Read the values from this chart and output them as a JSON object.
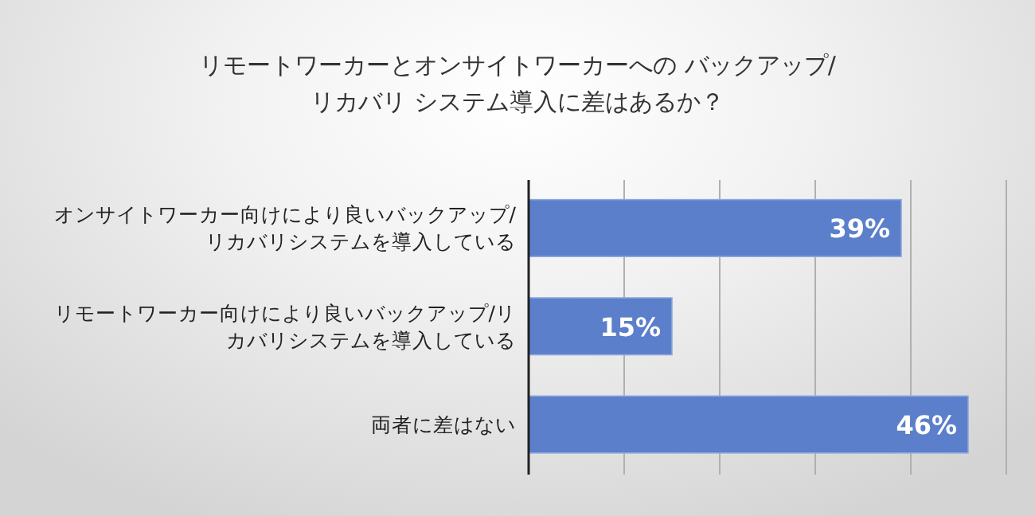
{
  "chart_data": {
    "type": "bar",
    "orientation": "horizontal",
    "title": "リモートワーカーとオンサイトワーカーへの バックアップ/リカバリ システム導入に差はあるか？",
    "categories": [
      "オンサイトワーカー向けにより良いバックアップ/リカバリシステムを導入している",
      "リモートワーカー向けにより良いバックアップ/リカバリシステムを導入している",
      "両者に差はない"
    ],
    "values": [
      39,
      15,
      46
    ],
    "color": "#5b7fca",
    "data_labels": true,
    "value_labels": [
      "39%",
      "15%",
      "46%"
    ],
    "xlim": [
      0,
      50
    ],
    "xticks": [
      {
        "value": 0,
        "label": null
      },
      {
        "value": 10,
        "label": null
      },
      {
        "value": 20,
        "label": null
      },
      {
        "value": 30,
        "label": null
      },
      {
        "value": 40,
        "label": null
      },
      {
        "value": 50,
        "label": null
      }
    ],
    "grid": "x"
  }
}
